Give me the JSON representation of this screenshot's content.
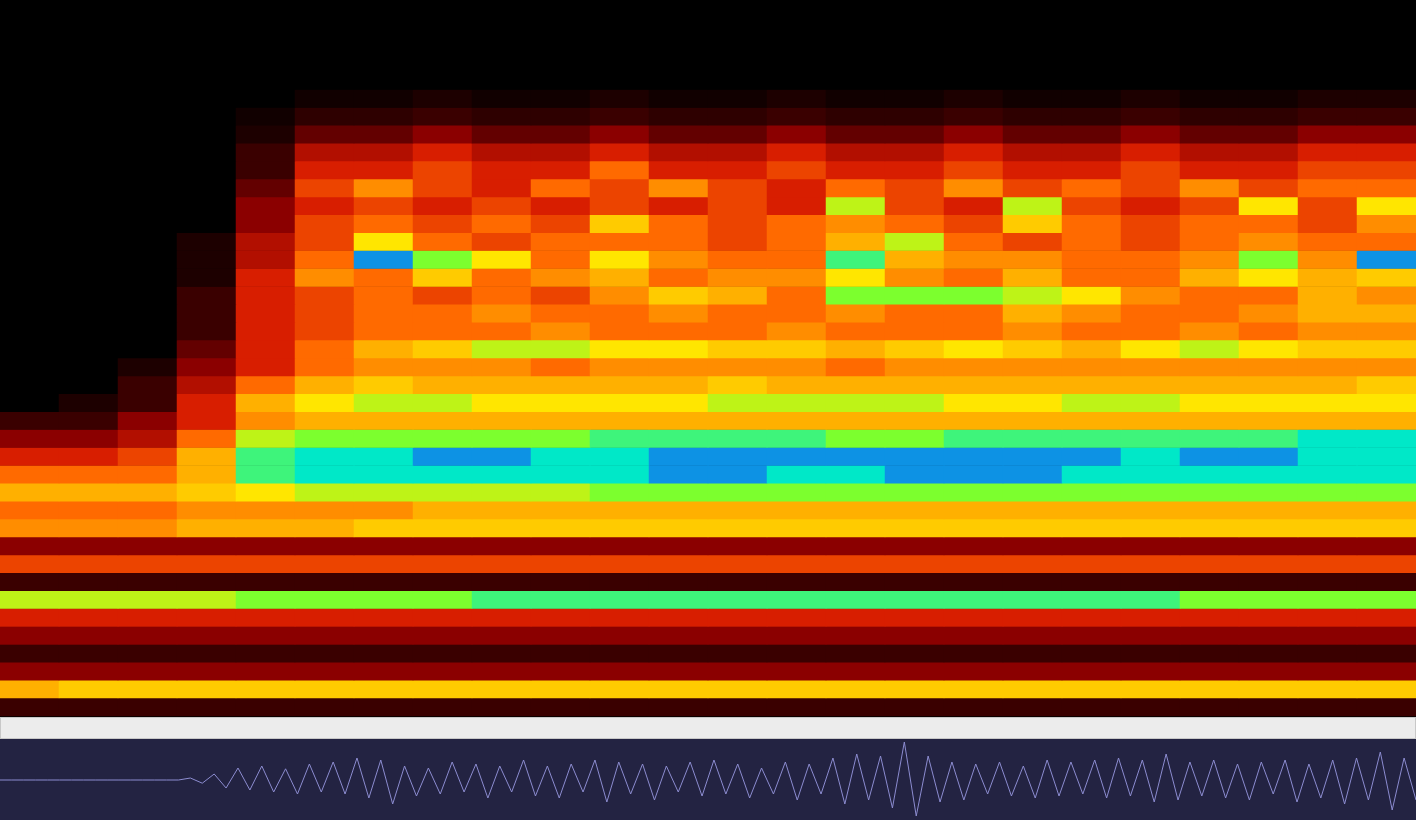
{
  "chart_data": [
    {
      "type": "heatmap",
      "tick_labels": false,
      "grid": false,
      "color_range": [
        0,
        9
      ],
      "cells": [
        [
          1,
          1,
          1,
          1,
          1,
          1,
          1,
          1,
          1,
          1,
          1,
          1,
          1,
          1,
          1,
          1,
          1,
          1,
          1,
          1,
          1,
          1,
          1,
          1
        ],
        [
          5,
          5.5,
          5.5,
          5.5,
          5.5,
          5.5,
          5.5,
          5.5,
          5.5,
          5.5,
          5.5,
          5.5,
          5.5,
          5.5,
          5.5,
          5.5,
          5.5,
          5.5,
          5.5,
          5.5,
          5.5,
          5.5,
          5.5,
          5.5
        ],
        [
          2,
          2,
          2,
          2,
          2,
          2,
          2,
          2,
          2,
          2,
          2,
          2,
          2,
          2,
          2,
          2,
          2,
          2,
          2,
          2,
          2,
          2,
          2,
          2
        ],
        [
          1,
          1,
          1,
          1,
          1,
          1,
          1,
          1,
          1,
          1,
          1,
          1,
          1,
          1,
          1,
          1,
          1,
          1,
          1,
          1,
          1,
          1,
          1,
          1
        ],
        [
          2,
          2,
          2,
          2,
          2,
          2,
          2,
          2,
          2,
          2,
          2,
          2,
          2,
          2,
          2,
          2,
          2,
          2,
          2,
          2,
          2,
          2,
          2,
          2
        ],
        [
          3,
          3,
          3,
          3,
          3,
          3,
          3,
          3,
          3,
          3,
          3,
          3,
          3,
          3,
          3,
          3,
          3,
          3,
          3,
          3,
          3,
          3,
          3,
          3
        ],
        [
          6.5,
          6.5,
          6.5,
          6.5,
          7,
          7,
          7,
          7,
          7.5,
          7.5,
          7.5,
          7.5,
          7.5,
          7.5,
          7.5,
          7.5,
          7.5,
          7.5,
          7.5,
          7.5,
          7,
          7,
          7,
          7
        ],
        [
          1,
          1,
          1,
          1,
          1,
          1,
          1,
          1,
          1,
          1,
          1,
          1,
          1,
          1,
          1,
          1,
          1,
          1,
          1,
          1,
          1,
          1,
          1,
          1
        ],
        [
          3.5,
          3.5,
          3.5,
          3.5,
          3.5,
          3.5,
          3.5,
          3.5,
          3.5,
          3.5,
          3.5,
          3.5,
          3.5,
          3.5,
          3.5,
          3.5,
          3.5,
          3.5,
          3.5,
          3.5,
          3.5,
          3.5,
          3.5,
          3.5
        ],
        [
          2,
          2,
          2,
          2,
          2,
          2,
          2,
          2,
          2,
          2,
          2,
          2,
          2,
          2,
          2,
          2,
          2,
          2,
          2,
          2,
          2,
          2,
          2,
          2
        ],
        [
          4.5,
          4.5,
          4.5,
          5,
          5,
          5,
          5.5,
          5.5,
          5.5,
          5.5,
          5.5,
          5.5,
          5.5,
          5.5,
          5.5,
          5.5,
          5.5,
          5.5,
          5.5,
          5.5,
          5.5,
          5.5,
          5.5,
          5.5
        ],
        [
          4,
          4,
          4,
          4.5,
          4.5,
          4.5,
          4.5,
          5,
          5,
          5,
          5,
          5,
          5,
          5,
          5,
          5,
          5,
          5,
          5,
          5,
          5,
          5,
          5,
          5
        ],
        [
          5,
          5,
          5,
          5.5,
          6,
          6.5,
          6.5,
          6.5,
          6.5,
          6.5,
          7,
          7,
          7,
          7,
          7,
          7,
          7,
          7,
          7,
          7,
          7,
          7,
          7,
          7
        ],
        [
          4,
          4,
          4,
          5,
          7.5,
          8,
          8,
          8,
          8,
          8,
          8,
          8.5,
          8.5,
          8,
          8,
          8.5,
          8.5,
          8.5,
          8,
          8,
          8,
          8,
          8,
          8
        ],
        [
          3,
          3,
          3.5,
          5,
          7.5,
          8,
          8,
          8.5,
          8.5,
          8,
          8,
          8.5,
          8.5,
          8.5,
          8.5,
          8.5,
          8.5,
          8.5,
          8.5,
          8,
          8.5,
          8.5,
          8,
          8
        ],
        [
          2,
          2,
          2.5,
          4,
          6.5,
          7,
          7,
          7,
          7,
          7,
          7.5,
          7.5,
          7.5,
          7.5,
          7,
          7,
          7.5,
          7.5,
          7.5,
          7.5,
          7.5,
          7.5,
          8,
          8
        ],
        [
          1,
          1,
          2,
          3,
          4.5,
          5,
          5,
          5,
          5,
          5,
          5,
          5,
          5,
          5,
          5,
          5,
          5,
          5,
          5,
          5,
          5,
          5,
          5,
          5
        ],
        [
          0,
          0.5,
          1,
          3,
          5,
          6,
          6.5,
          6.5,
          6,
          6,
          6,
          6,
          6.5,
          6.5,
          6.5,
          6.5,
          6,
          6,
          6.5,
          6.5,
          6,
          6,
          6,
          6
        ],
        [
          0,
          0,
          1,
          2.5,
          4,
          5,
          5.5,
          5,
          5,
          5,
          5,
          5,
          5.5,
          5,
          5,
          5,
          5,
          5,
          5,
          5,
          5,
          5,
          5,
          5.5
        ],
        [
          0,
          0,
          0.5,
          2,
          3,
          4,
          4.5,
          4.5,
          4.5,
          4,
          4.5,
          4.5,
          4.5,
          4.5,
          4,
          4.5,
          4.5,
          4.5,
          4.5,
          4.5,
          4.5,
          4.5,
          4.5,
          4.5
        ],
        [
          0,
          0,
          0,
          1.5,
          3,
          4,
          5,
          5.5,
          6.5,
          6.5,
          6,
          6,
          5.5,
          5.5,
          5,
          5.5,
          6,
          5.5,
          5,
          6,
          6.5,
          6,
          5.5,
          5.5
        ],
        [
          0,
          0,
          0,
          1,
          3,
          3.5,
          4,
          4,
          4,
          4.5,
          4,
          4,
          4,
          4.5,
          4,
          4,
          4,
          4.5,
          4,
          4,
          4.5,
          4,
          4.5,
          4.5
        ],
        [
          0,
          0,
          0,
          1,
          3,
          3.5,
          4,
          4,
          4.5,
          4,
          4,
          4.5,
          4,
          4,
          4.5,
          4,
          4,
          5,
          4.5,
          4,
          4,
          4.5,
          5,
          5
        ],
        [
          0,
          0,
          0,
          1,
          3,
          3.5,
          4,
          3.5,
          4,
          3.5,
          4.5,
          5.5,
          5,
          4,
          7,
          7,
          7,
          6.5,
          6,
          4.5,
          4,
          4,
          5,
          4.5
        ],
        [
          0,
          0,
          0,
          0.5,
          3,
          4.5,
          4,
          5.5,
          4,
          4.5,
          5,
          4,
          4.5,
          4.5,
          6,
          4.5,
          4,
          5,
          4,
          4,
          5,
          6,
          5,
          5.5
        ],
        [
          0,
          0,
          0,
          0.5,
          2.5,
          4,
          8.5,
          7,
          6,
          4,
          6,
          4.5,
          4,
          4,
          7.5,
          5,
          4.5,
          4.5,
          4,
          4,
          4.5,
          7,
          4.5,
          8.5
        ],
        [
          0,
          0,
          0,
          0.5,
          2.5,
          3.5,
          6,
          4,
          3.5,
          4,
          4,
          4,
          3.5,
          4,
          5,
          6.5,
          4,
          3.5,
          4,
          3.5,
          4,
          4.5,
          4,
          4
        ],
        [
          0,
          0,
          0,
          0,
          2,
          3.5,
          4,
          3.5,
          4,
          3.5,
          5.5,
          4,
          3.5,
          4,
          4.5,
          4,
          3.5,
          5.5,
          4,
          3.5,
          4,
          4,
          3.5,
          4.5
        ],
        [
          0,
          0,
          0,
          0,
          2,
          3,
          3.5,
          3,
          3.5,
          3,
          3.5,
          3,
          3.5,
          3,
          6.5,
          3.5,
          3,
          6.5,
          3.5,
          3,
          3.5,
          6,
          3.5,
          6
        ],
        [
          0,
          0,
          0,
          0,
          1.5,
          3.5,
          4.5,
          3.5,
          3,
          4,
          3.5,
          4.5,
          3.5,
          3,
          4,
          3.5,
          4.5,
          3.5,
          4,
          3.5,
          4.5,
          3.5,
          4,
          4
        ],
        [
          0,
          0,
          0,
          0,
          1,
          3,
          3,
          3.5,
          3,
          3,
          4,
          3,
          3,
          3.5,
          3,
          3,
          3.5,
          3,
          3,
          3.5,
          3,
          3,
          3.5,
          3.5
        ],
        [
          0,
          0,
          0,
          0,
          1,
          2.5,
          2.5,
          3,
          2.5,
          2.5,
          3,
          2.5,
          2.5,
          3,
          2.5,
          2.5,
          3,
          2.5,
          2.5,
          3,
          2.5,
          2.5,
          3,
          3
        ],
        [
          0,
          0,
          0,
          0,
          0.5,
          1.5,
          1.5,
          2,
          1.5,
          1.5,
          2,
          1.5,
          1.5,
          2,
          1.5,
          1.5,
          2,
          1.5,
          1.5,
          2,
          1.5,
          1.5,
          2,
          2
        ],
        [
          0,
          0,
          0,
          0,
          0.3,
          0.8,
          0.8,
          1,
          0.8,
          0.8,
          1,
          0.8,
          0.8,
          1,
          0.8,
          0.8,
          1,
          0.8,
          0.8,
          1,
          0.8,
          0.8,
          1,
          1
        ],
        [
          0,
          0,
          0,
          0,
          0,
          0.3,
          0.3,
          0.5,
          0.3,
          0.3,
          0.5,
          0.3,
          0.3,
          0.5,
          0.3,
          0.3,
          0.5,
          0.3,
          0.3,
          0.5,
          0.3,
          0.3,
          0.5,
          0.5
        ],
        [
          0,
          0,
          0,
          0,
          0,
          0,
          0,
          0,
          0,
          0,
          0,
          0,
          0,
          0,
          0,
          0,
          0,
          0,
          0,
          0,
          0,
          0,
          0,
          0
        ],
        [
          0,
          0,
          0,
          0,
          0,
          0,
          0,
          0,
          0,
          0,
          0,
          0,
          0,
          0,
          0,
          0,
          0,
          0,
          0,
          0,
          0,
          0,
          0,
          0
        ],
        [
          0,
          0,
          0,
          0,
          0,
          0,
          0,
          0,
          0,
          0,
          0,
          0,
          0,
          0,
          0,
          0,
          0,
          0,
          0,
          0,
          0,
          0,
          0,
          0
        ],
        [
          0,
          0,
          0,
          0,
          0,
          0,
          0,
          0,
          0,
          0,
          0,
          0,
          0,
          0,
          0,
          0,
          0,
          0,
          0,
          0,
          0,
          0,
          0,
          0
        ],
        [
          0,
          0,
          0,
          0,
          0,
          0,
          0,
          0,
          0,
          0,
          0,
          0,
          0,
          0,
          0,
          0,
          0,
          0,
          0,
          0,
          0,
          0,
          0,
          0
        ]
      ]
    },
    {
      "type": "line",
      "tick_labels": false,
      "grid": false,
      "color": "#8c8cd0",
      "ylim": [
        -1,
        1
      ],
      "values": [
        0,
        0,
        0,
        0,
        0,
        0,
        0,
        0,
        0,
        0,
        0,
        0,
        0,
        0,
        0,
        0,
        0.05,
        -0.08,
        0.15,
        -0.2,
        0.3,
        -0.25,
        0.35,
        -0.3,
        0.28,
        -0.35,
        0.4,
        -0.3,
        0.45,
        -0.35,
        0.55,
        -0.45,
        0.5,
        -0.6,
        0.35,
        -0.4,
        0.3,
        -0.35,
        0.45,
        -0.3,
        0.4,
        -0.45,
        0.35,
        -0.3,
        0.5,
        -0.4,
        0.35,
        -0.45,
        0.4,
        -0.3,
        0.5,
        -0.55,
        0.45,
        -0.35,
        0.4,
        -0.5,
        0.35,
        -0.3,
        0.45,
        -0.4,
        0.5,
        -0.35,
        0.4,
        -0.45,
        0.3,
        -0.35,
        0.45,
        -0.5,
        0.4,
        -0.35,
        0.55,
        -0.6,
        0.65,
        -0.5,
        0.6,
        -0.7,
        0.95,
        -0.9,
        0.6,
        -0.55,
        0.45,
        -0.5,
        0.4,
        -0.35,
        0.45,
        -0.4,
        0.35,
        -0.45,
        0.5,
        -0.4,
        0.45,
        -0.35,
        0.5,
        -0.45,
        0.55,
        -0.4,
        0.5,
        -0.55,
        0.65,
        -0.5,
        0.45,
        -0.4,
        0.5,
        -0.45,
        0.4,
        -0.5,
        0.45,
        -0.35,
        0.5,
        -0.55,
        0.4,
        -0.45,
        0.5,
        -0.6,
        0.55,
        -0.5,
        0.7,
        -0.75,
        0.55,
        -0.5
      ]
    }
  ]
}
